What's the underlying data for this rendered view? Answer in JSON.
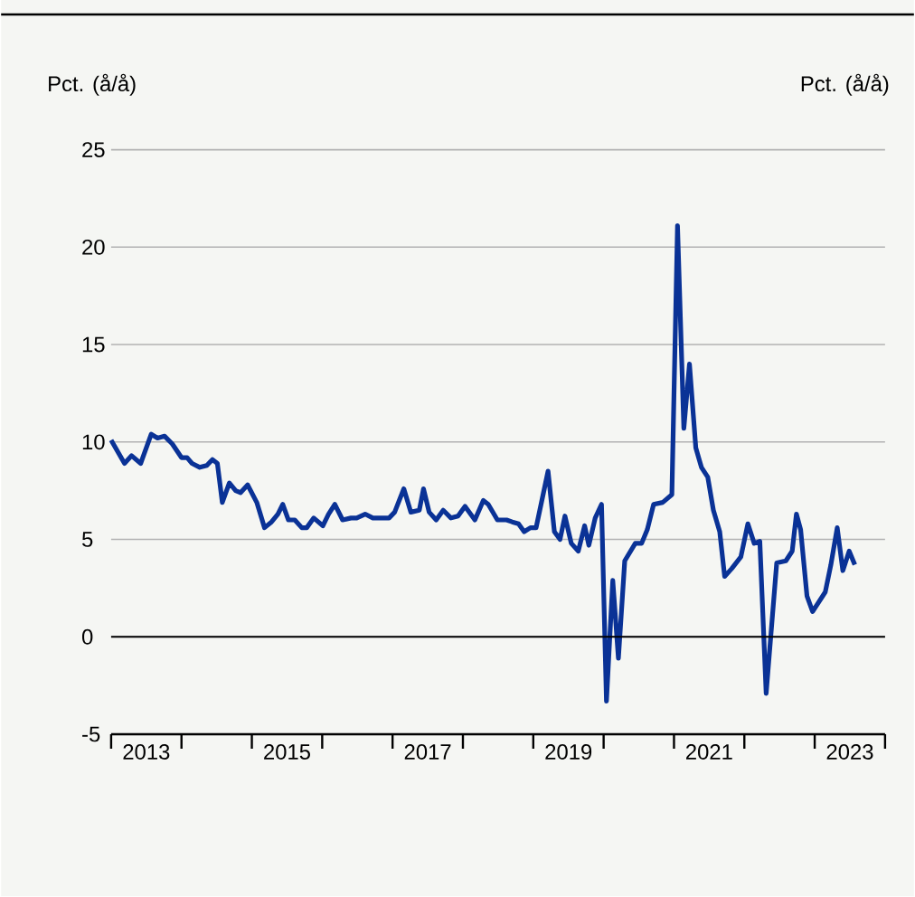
{
  "chart_data": {
    "type": "line",
    "ylabel": "Pct. (å/å)",
    "y2label": "Pct. (å/å)",
    "x": [
      2013.0,
      2013.19,
      2013.29,
      2013.42,
      2013.57,
      2013.66,
      2013.76,
      2013.87,
      2014.0,
      2014.08,
      2014.15,
      2014.26,
      2014.36,
      2014.44,
      2014.51,
      2014.58,
      2014.68,
      2014.77,
      2014.84,
      2014.94,
      2015.07,
      2015.18,
      2015.28,
      2015.37,
      2015.44,
      2015.52,
      2015.61,
      2015.71,
      2015.78,
      2015.88,
      2016.01,
      2016.09,
      2016.18,
      2016.29,
      2016.41,
      2016.49,
      2016.61,
      2016.72,
      2016.82,
      2016.95,
      2017.03,
      2017.16,
      2017.26,
      2017.38,
      2017.44,
      2017.52,
      2017.62,
      2017.72,
      2017.83,
      2017.93,
      2018.03,
      2018.17,
      2018.29,
      2018.36,
      2018.49,
      2018.62,
      2018.7,
      2018.79,
      2018.87,
      2018.96,
      2019.04,
      2019.21,
      2019.3,
      2019.38,
      2019.45,
      2019.54,
      2019.64,
      2019.73,
      2019.79,
      2019.88,
      2019.97,
      2020.04,
      2020.13,
      2020.21,
      2020.3,
      2020.45,
      2020.54,
      2020.62,
      2020.71,
      2020.84,
      2020.97,
      2021.05,
      2021.14,
      2021.22,
      2021.31,
      2021.39,
      2021.48,
      2021.56,
      2021.65,
      2021.72,
      2021.82,
      2021.95,
      2022.05,
      2022.14,
      2022.22,
      2022.31,
      2022.46,
      2022.59,
      2022.68,
      2022.74,
      2022.8,
      2022.89,
      2022.97,
      2023.15,
      2023.23,
      2023.32,
      2023.4,
      2023.49,
      2023.57
    ],
    "series": [
      {
        "color": "#0a3296",
        "values": [
          10.1,
          8.9,
          9.3,
          8.9,
          10.4,
          10.2,
          10.3,
          9.9,
          9.2,
          9.2,
          8.9,
          8.7,
          8.8,
          9.1,
          8.9,
          6.9,
          7.9,
          7.5,
          7.4,
          7.8,
          6.9,
          5.6,
          5.9,
          6.3,
          6.8,
          6.0,
          6.0,
          5.6,
          5.6,
          6.1,
          5.7,
          6.3,
          6.8,
          6.0,
          6.1,
          6.1,
          6.3,
          6.1,
          6.1,
          6.1,
          6.4,
          7.6,
          6.4,
          6.5,
          7.6,
          6.4,
          6.0,
          6.5,
          6.1,
          6.2,
          6.7,
          6.0,
          7.0,
          6.8,
          6.0,
          6.0,
          5.9,
          5.8,
          5.4,
          5.6,
          5.6,
          8.5,
          5.4,
          5.0,
          6.2,
          4.8,
          4.4,
          5.7,
          4.7,
          6.1,
          6.8,
          -3.3,
          2.9,
          -1.1,
          3.9,
          4.8,
          4.8,
          5.5,
          6.8,
          6.9,
          7.3,
          21.1,
          10.7,
          14.0,
          9.7,
          8.7,
          8.2,
          6.5,
          5.4,
          3.1,
          3.5,
          4.1,
          5.8,
          4.8,
          4.9,
          -2.9,
          3.8,
          3.9,
          4.4,
          6.3,
          5.5,
          2.1,
          1.3,
          2.3,
          3.7,
          5.6,
          3.4,
          4.4,
          3.7
        ]
      }
    ],
    "xlim": [
      2013,
      2024
    ],
    "xticks": [
      {
        "value": 2013,
        "label": null
      },
      {
        "value": 2014,
        "label": null
      },
      {
        "value": 2015,
        "label": null
      },
      {
        "value": 2016,
        "label": null
      },
      {
        "value": 2017,
        "label": null
      },
      {
        "value": 2018,
        "label": null
      },
      {
        "value": 2019,
        "label": null
      },
      {
        "value": 2020,
        "label": null
      },
      {
        "value": 2021,
        "label": null
      },
      {
        "value": 2022,
        "label": null
      },
      {
        "value": 2023,
        "label": null
      },
      {
        "value": 2024,
        "label": null
      },
      {
        "value": 2013.5,
        "label": "2013"
      },
      {
        "value": 2015.5,
        "label": "2015"
      },
      {
        "value": 2017.5,
        "label": "2017"
      },
      {
        "value": 2019.5,
        "label": "2019"
      },
      {
        "value": 2021.5,
        "label": "2021"
      },
      {
        "value": 2023.5,
        "label": "2023"
      }
    ],
    "ylim": [
      -5,
      25
    ],
    "yticks": [
      -5,
      0,
      5,
      10,
      15,
      20,
      25
    ],
    "grid": "y",
    "legend": false,
    "marker": "none",
    "line_style": "solid",
    "ref_lines": [
      {
        "axis": "y",
        "value": 0,
        "color": "#000000"
      }
    ]
  }
}
